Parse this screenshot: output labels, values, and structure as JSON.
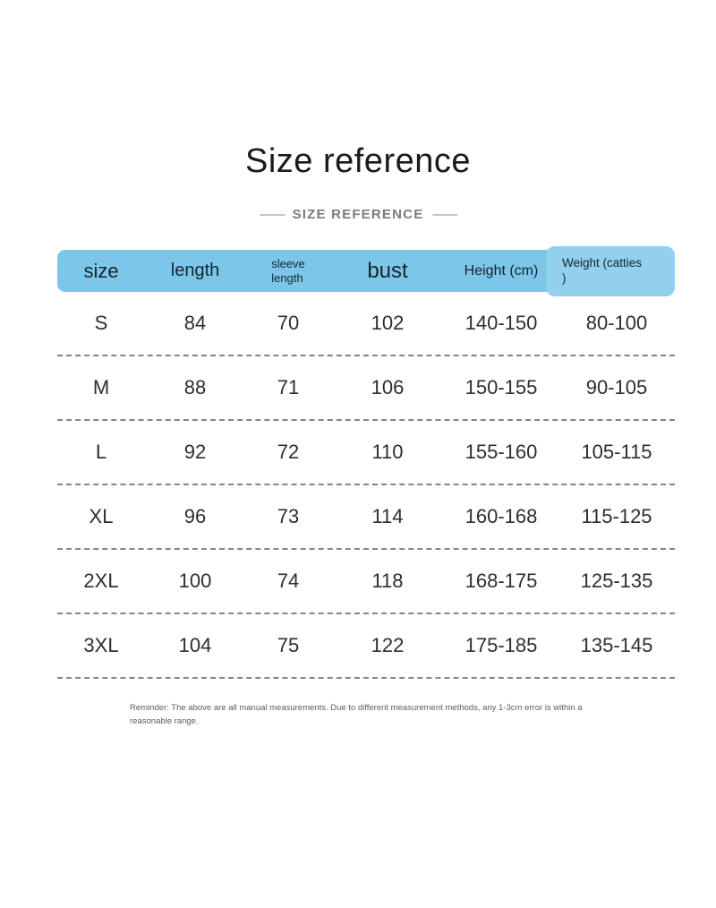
{
  "page": {
    "title": "Size reference",
    "subtitle": "SIZE REFERENCE",
    "subtitle_dash": "——"
  },
  "table": {
    "header": {
      "size": "size",
      "length": "length",
      "sleeve_line1": "sleeve",
      "sleeve_line2": "length",
      "bust": "bust",
      "height": "Height (cm)",
      "weight_line1": "Weight (catties",
      "weight_line2": ")"
    },
    "rows": [
      {
        "size": "S",
        "length": "84",
        "sleeve": "70",
        "bust": "102",
        "height": "140-150",
        "weight": "80-100"
      },
      {
        "size": "M",
        "length": "88",
        "sleeve": "71",
        "bust": "106",
        "height": "150-155",
        "weight": "90-105"
      },
      {
        "size": "L",
        "length": "92",
        "sleeve": "72",
        "bust": "110",
        "height": "155-160",
        "weight": "105-115"
      },
      {
        "size": "XL",
        "length": "96",
        "sleeve": "73",
        "bust": "114",
        "height": "160-168",
        "weight": "115-125"
      },
      {
        "size": "2XL",
        "length": "100",
        "sleeve": "74",
        "bust": "118",
        "height": "168-175",
        "weight": "125-135"
      },
      {
        "size": "3XL",
        "length": "104",
        "sleeve": "75",
        "bust": "122",
        "height": "175-185",
        "weight": "135-145"
      }
    ]
  },
  "footer": {
    "reminder": "Reminder: The above are all manual measurements. Due to different measurement methods, any 1-3cm error is within a reasonable range."
  },
  "colors": {
    "header_bar": "#7cc6e9",
    "weight_cell_highlight": "#92d0ee",
    "header_text": "#16242e",
    "title_text": "#1a1a1a",
    "subtitle_text": "#7b7b7b",
    "body_text": "#2e2e2e",
    "divider": "#858585",
    "footer_text": "#5c5c5c"
  },
  "chart_data": {
    "type": "table",
    "title": "Size reference",
    "columns": [
      "size",
      "length",
      "sleeve length",
      "bust",
      "Height (cm)",
      "Weight (catties)"
    ],
    "rows": [
      [
        "S",
        84,
        70,
        102,
        "140-150",
        "80-100"
      ],
      [
        "M",
        88,
        71,
        106,
        "150-155",
        "90-105"
      ],
      [
        "L",
        92,
        72,
        110,
        "155-160",
        "105-115"
      ],
      [
        "XL",
        96,
        73,
        114,
        "160-168",
        "115-125"
      ],
      [
        "2XL",
        100,
        74,
        118,
        "168-175",
        "125-135"
      ],
      [
        "3XL",
        104,
        75,
        122,
        "175-185",
        "135-145"
      ]
    ]
  }
}
